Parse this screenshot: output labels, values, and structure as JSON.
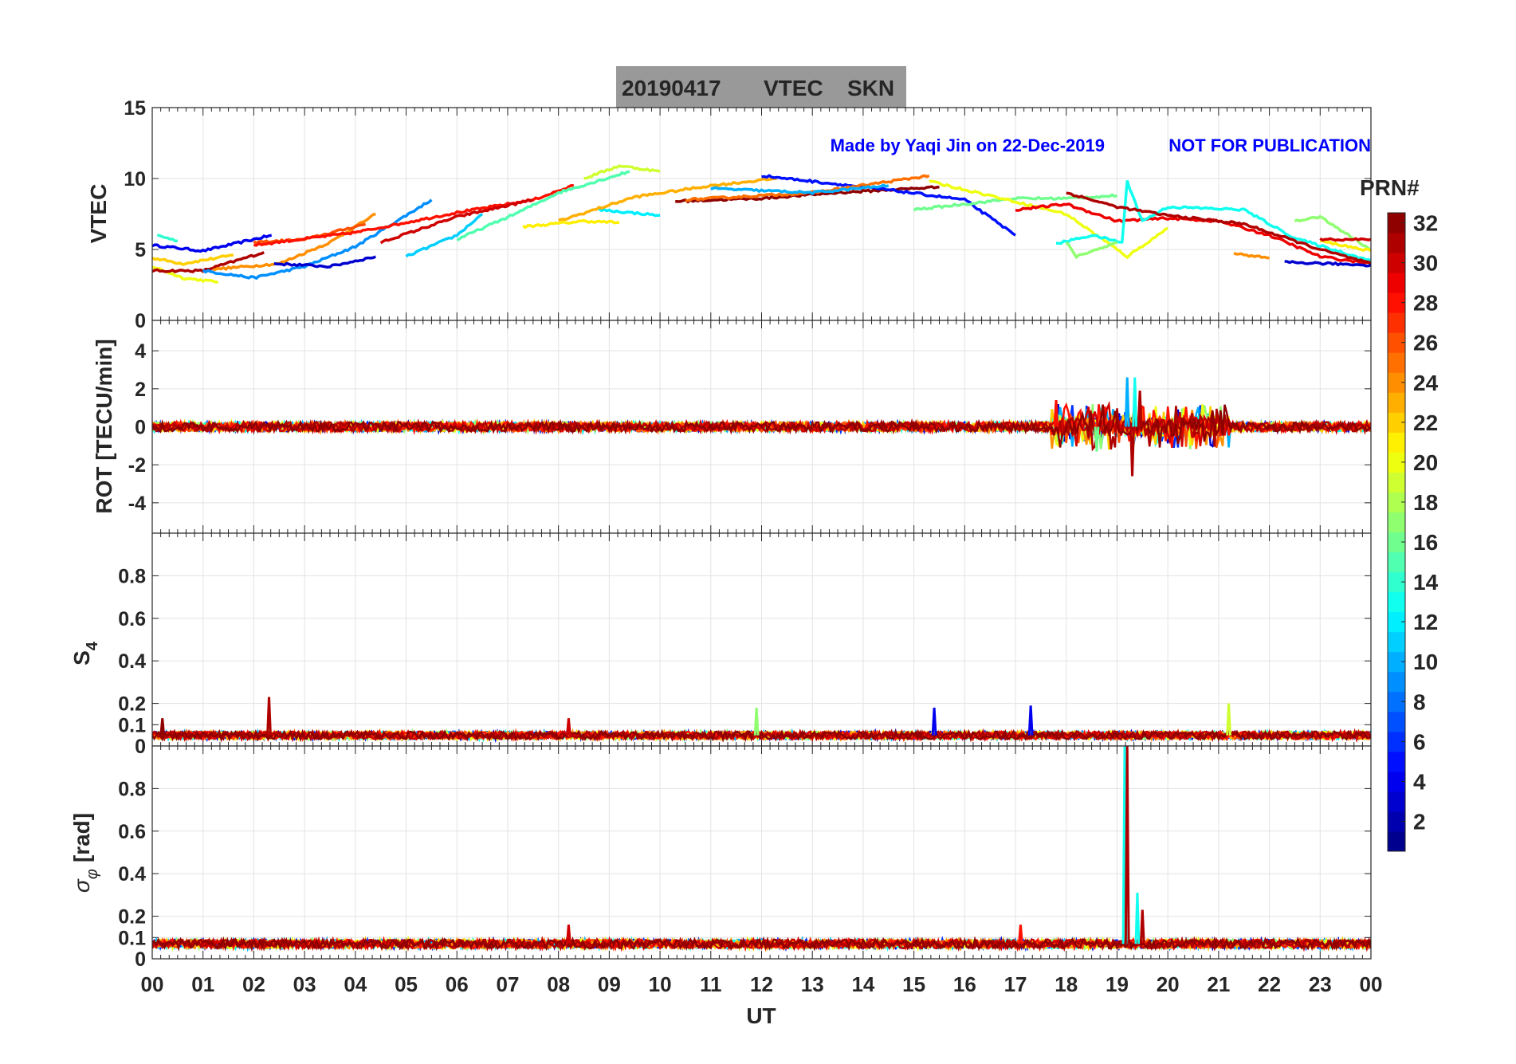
{
  "chart_data": {
    "type": "line",
    "title": {
      "date": "20190417",
      "quantity": "VTEC",
      "station": "SKN"
    },
    "annotation_left": "Made by Yaqi Jin on 22-Dec-2019",
    "annotation_right": "NOT FOR PUBLICATION",
    "annotation_color": "#0000ff",
    "title_box_color": "#999999",
    "xlabel": "UT",
    "xlim": [
      0,
      24
    ],
    "x_ticks": [
      "00",
      "01",
      "02",
      "03",
      "04",
      "05",
      "06",
      "07",
      "08",
      "09",
      "10",
      "11",
      "12",
      "13",
      "14",
      "15",
      "16",
      "17",
      "18",
      "19",
      "20",
      "21",
      "22",
      "23",
      "00"
    ],
    "grid": true,
    "colorbar": {
      "label": "PRN#",
      "range": [
        1,
        32
      ],
      "ticks": [
        "2",
        "4",
        "6",
        "8",
        "10",
        "12",
        "14",
        "16",
        "18",
        "20",
        "22",
        "24",
        "26",
        "28",
        "30",
        "32"
      ],
      "colormap": "jet",
      "levels": 32
    },
    "panels": [
      {
        "id": "vtec",
        "ylabel": "VTEC",
        "ylim": [
          0,
          15
        ],
        "y_ticks": [
          "0",
          "5",
          "10",
          "15"
        ],
        "y_tick_values": [
          0,
          5,
          10,
          15
        ],
        "arcs": [
          {
            "prn": 4,
            "points": [
              [
                0,
                5.3
              ],
              [
                1,
                4.9
              ],
              [
                2.35,
                6.0
              ]
            ]
          },
          {
            "prn": 14,
            "points": [
              [
                0.1,
                6.0
              ],
              [
                0.5,
                5.6
              ]
            ]
          },
          {
            "prn": 22,
            "points": [
              [
                0,
                4.4
              ],
              [
                0.6,
                4.0
              ],
              [
                1.6,
                4.6
              ]
            ]
          },
          {
            "prn": 20,
            "points": [
              [
                0,
                3.8
              ],
              [
                0.6,
                3.0
              ],
              [
                1.3,
                2.7
              ]
            ]
          },
          {
            "prn": 31,
            "points": [
              [
                0,
                3.5
              ],
              [
                1,
                3.5
              ],
              [
                2.2,
                4.8
              ]
            ]
          },
          {
            "prn": 9,
            "points": [
              [
                1,
                3.5
              ],
              [
                2,
                3.0
              ],
              [
                3,
                3.8
              ],
              [
                4,
                5.2
              ],
              [
                5.5,
                8.5
              ]
            ]
          },
          {
            "prn": 24,
            "points": [
              [
                1.2,
                3.6
              ],
              [
                2.5,
                4.0
              ],
              [
                3.5,
                5.5
              ],
              [
                4.4,
                7.5
              ]
            ]
          },
          {
            "prn": 26,
            "points": [
              [
                2,
                5.5
              ],
              [
                3,
                5.7
              ],
              [
                4.2,
                6.8
              ]
            ]
          },
          {
            "prn": 3,
            "points": [
              [
                2.4,
                4.0
              ],
              [
                3.5,
                3.8
              ],
              [
                4.4,
                4.5
              ]
            ]
          },
          {
            "prn": 28,
            "points": [
              [
                2,
                5.3
              ],
              [
                4,
                6.2
              ],
              [
                6,
                7.6
              ],
              [
                7.5,
                8.5
              ],
              [
                8.3,
                9.5
              ]
            ]
          },
          {
            "prn": 30,
            "points": [
              [
                4.5,
                5.5
              ],
              [
                6,
                7.3
              ],
              [
                7.5,
                8.5
              ]
            ]
          },
          {
            "prn": 11,
            "points": [
              [
                5,
                4.5
              ],
              [
                6,
                6.0
              ],
              [
                6.5,
                7.5
              ]
            ]
          },
          {
            "prn": 15,
            "points": [
              [
                6,
                5.7
              ],
              [
                7.2,
                7.6
              ],
              [
                8,
                9.0
              ],
              [
                9.4,
                10.5
              ]
            ]
          },
          {
            "prn": 19,
            "points": [
              [
                8.5,
                10.0
              ],
              [
                9.2,
                10.9
              ],
              [
                10,
                10.5
              ]
            ]
          },
          {
            "prn": 12,
            "points": [
              [
                8.8,
                7.8
              ],
              [
                10,
                7.4
              ]
            ]
          },
          {
            "prn": 21,
            "points": [
              [
                7.3,
                6.6
              ],
              [
                8.5,
                7.0
              ],
              [
                9.2,
                6.9
              ]
            ]
          },
          {
            "prn": 23,
            "points": [
              [
                8,
                7.0
              ],
              [
                9.5,
                8.7
              ],
              [
                11,
                9.5
              ],
              [
                12.3,
                10.0
              ]
            ]
          },
          {
            "prn": 32,
            "points": [
              [
                10.3,
                8.4
              ],
              [
                12,
                8.6
              ],
              [
                13.5,
                9.0
              ],
              [
                15.5,
                9.4
              ]
            ]
          },
          {
            "prn": 5,
            "points": [
              [
                12,
                10.2
              ],
              [
                13.5,
                9.6
              ],
              [
                14.5,
                9.2
              ],
              [
                16,
                8.5
              ],
              [
                17,
                6.0
              ]
            ]
          },
          {
            "prn": 25,
            "points": [
              [
                10.5,
                8.5
              ],
              [
                13,
                9.0
              ],
              [
                15.3,
                10.2
              ]
            ]
          },
          {
            "prn": 10,
            "points": [
              [
                11,
                9.3
              ],
              [
                13,
                9.0
              ],
              [
                14.5,
                9.5
              ]
            ]
          },
          {
            "prn": 16,
            "points": [
              [
                15,
                7.8
              ],
              [
                17,
                8.6
              ],
              [
                18,
                8.6
              ],
              [
                19,
                8.8
              ]
            ]
          },
          {
            "prn": 20,
            "points": [
              [
                15.3,
                9.8
              ],
              [
                16.5,
                8.8
              ],
              [
                18,
                7.5
              ],
              [
                19.2,
                4.5
              ],
              [
                20,
                6.5
              ]
            ]
          },
          {
            "prn": 29,
            "points": [
              [
                17,
                7.8
              ],
              [
                18,
                8.2
              ],
              [
                19,
                7.0
              ],
              [
                20,
                7.2
              ],
              [
                21,
                7.0
              ],
              [
                22,
                6.0
              ],
              [
                23,
                4.5
              ],
              [
                24,
                4.0
              ]
            ]
          },
          {
            "prn": 13,
            "points": [
              [
                17.8,
                5.4
              ],
              [
                18.5,
                6.0
              ],
              [
                19.1,
                5.5
              ],
              [
                19.2,
                9.8
              ],
              [
                19.5,
                7.0
              ],
              [
                20,
                8.0
              ],
              [
                21.5,
                7.8
              ],
              [
                22.5,
                5.8
              ],
              [
                24,
                4.2
              ]
            ]
          },
          {
            "prn": 17,
            "points": [
              [
                18,
                5.5
              ],
              [
                18.2,
                4.5
              ],
              [
                19,
                5.5
              ]
            ]
          },
          {
            "prn": 31,
            "points": [
              [
                18,
                9.0
              ],
              [
                19,
                8.0
              ],
              [
                20,
                7.4
              ],
              [
                21.5,
                6.8
              ],
              [
                23,
                5.0
              ],
              [
                24,
                4.0
              ]
            ]
          },
          {
            "prn": 3,
            "points": [
              [
                22.3,
                4.1
              ],
              [
                24,
                3.9
              ]
            ]
          },
          {
            "prn": 17,
            "points": [
              [
                22.5,
                7.0
              ],
              [
                23,
                7.3
              ],
              [
                24,
                5.0
              ]
            ]
          },
          {
            "prn": 24,
            "points": [
              [
                21.3,
                4.7
              ],
              [
                22,
                4.4
              ]
            ]
          },
          {
            "prn": 21,
            "points": [
              [
                23,
                5.6
              ],
              [
                24,
                4.9
              ]
            ]
          },
          {
            "prn": 30,
            "points": [
              [
                23,
                5.7
              ],
              [
                24,
                5.7
              ]
            ]
          }
        ]
      },
      {
        "id": "rot",
        "ylabel": "ROT [TECU/min]",
        "ylim": [
          -5.6,
          5.6
        ],
        "y_ticks": [
          "-4",
          "-2",
          "0",
          "2",
          "4"
        ],
        "y_tick_values": [
          -4,
          -2,
          0,
          2,
          4
        ],
        "baseline": 0,
        "noise_amplitude": 0.25,
        "disturbed_interval": [
          17.7,
          21.2
        ],
        "disturbed_amplitude": 1.2,
        "spikes": [
          {
            "prn": 10,
            "x": 19.2,
            "y": 2.6
          },
          {
            "prn": 31,
            "x": 19.3,
            "y": -2.6
          },
          {
            "prn": 13,
            "x": 19.35,
            "y": 2.6
          },
          {
            "prn": 31,
            "x": 19.45,
            "y": 1.9
          },
          {
            "prn": 16,
            "x": 18.6,
            "y": -1.3
          },
          {
            "prn": 28,
            "x": 17.8,
            "y": 1.4
          }
        ]
      },
      {
        "id": "s4",
        "ylabel": "S",
        "ylabel_sub": "4",
        "ylim": [
          0,
          1
        ],
        "y_ticks": [
          "0",
          "0.1",
          "0.2",
          "0.4",
          "0.6",
          "0.8"
        ],
        "y_tick_values": [
          0,
          0.1,
          0.2,
          0.4,
          0.6,
          0.8
        ],
        "baseline": 0.05,
        "noise_amplitude": 0.03,
        "spikes": [
          {
            "prn": 31,
            "x": 2.3,
            "y": 0.23
          },
          {
            "prn": 32,
            "x": 0.2,
            "y": 0.13
          },
          {
            "prn": 30,
            "x": 8.2,
            "y": 0.13
          },
          {
            "prn": 17,
            "x": 11.9,
            "y": 0.18
          },
          {
            "prn": 4,
            "x": 15.4,
            "y": 0.18
          },
          {
            "prn": 4,
            "x": 17.3,
            "y": 0.19
          },
          {
            "prn": 19,
            "x": 21.2,
            "y": 0.2
          }
        ]
      },
      {
        "id": "sigma",
        "ylabel": "σ",
        "ylabel_sub": "φ",
        "ylabel_unit": "[rad]",
        "ylim": [
          0,
          1
        ],
        "y_ticks": [
          "0",
          "0.1",
          "0.2",
          "0.4",
          "0.6",
          "0.8"
        ],
        "y_tick_values": [
          0,
          0.1,
          0.2,
          0.4,
          0.6,
          0.8
        ],
        "baseline": 0.07,
        "noise_amplitude": 0.035,
        "spikes": [
          {
            "prn": 13,
            "x": 19.15,
            "y": 1.0
          },
          {
            "prn": 31,
            "x": 19.2,
            "y": 1.0
          },
          {
            "prn": 13,
            "x": 19.4,
            "y": 0.31
          },
          {
            "prn": 31,
            "x": 19.5,
            "y": 0.23
          },
          {
            "prn": 30,
            "x": 8.2,
            "y": 0.16
          },
          {
            "prn": 28,
            "x": 17.1,
            "y": 0.16
          }
        ]
      }
    ]
  }
}
